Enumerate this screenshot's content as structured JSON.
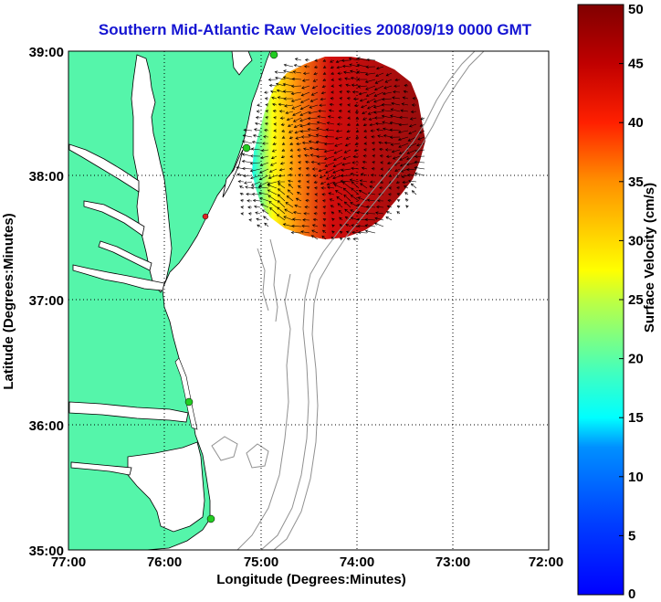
{
  "title": "Southern Mid-Atlantic Raw Velocities 2008/09/19 0000 GMT",
  "x_axis": {
    "label": "Longitude (Degrees:Minutes)",
    "ticks": [
      "77:00",
      "76:00",
      "75:00",
      "74:00",
      "73:00",
      "72:00"
    ]
  },
  "y_axis": {
    "label": "Latitude (Degrees:Minutes)",
    "ticks": [
      "39:00",
      "38:00",
      "37:00",
      "36:00",
      "35:00"
    ]
  },
  "colorbar": {
    "label": "Surface Velocity (cm/s)",
    "ticks": [
      "0",
      "5",
      "10",
      "15",
      "20",
      "25",
      "30",
      "35",
      "40",
      "45",
      "50"
    ],
    "colormap": "jet"
  },
  "colors": {
    "land": "#55f5aa",
    "water": "#ffffff",
    "coastline": "#000000",
    "bathymetry": "#909090",
    "title": "#1414d2",
    "station_active": "#22cc22",
    "station_inactive": "#dd2222"
  },
  "map": {
    "lon_range": [
      -77,
      -72
    ],
    "lat_range": [
      35,
      39
    ],
    "grid": "dotted",
    "field_type": "quiver"
  }
}
